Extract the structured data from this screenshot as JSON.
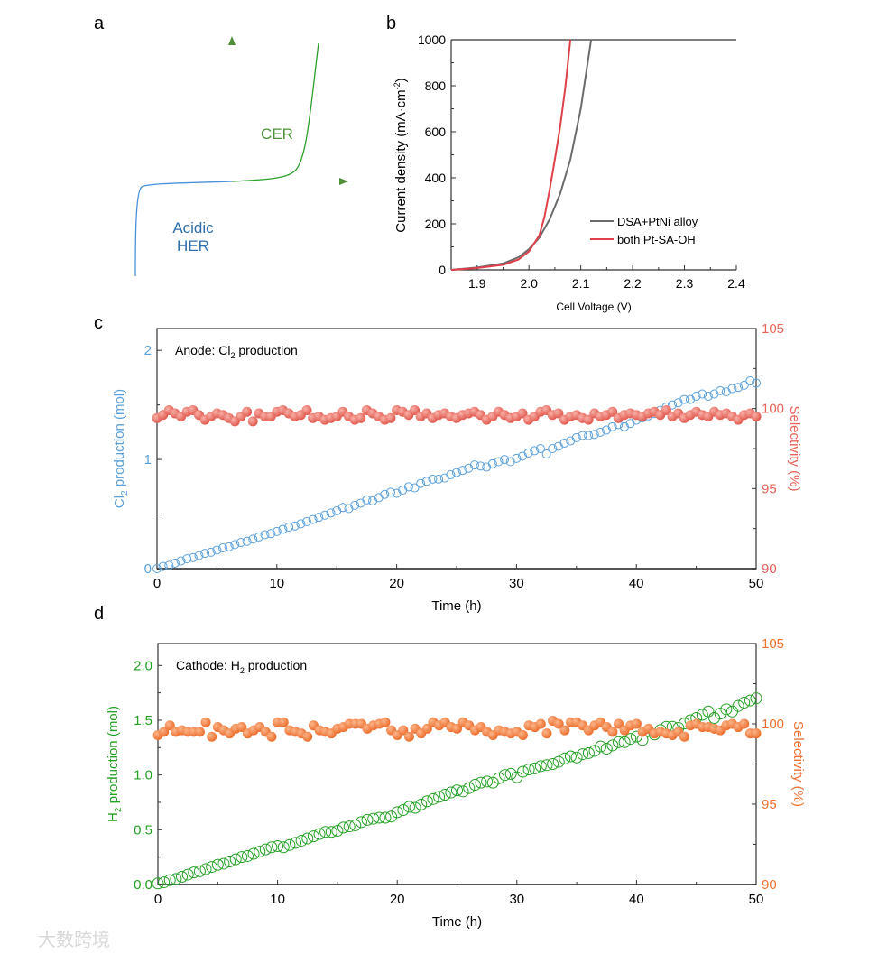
{
  "panel_labels": {
    "a": "a",
    "b": "b",
    "c": "c",
    "d": "d"
  },
  "watermark": "大数跨境",
  "colors": {
    "cer": "#3f8f2f",
    "her": "#2f6fb0",
    "dsa": "#6b6b6b",
    "pt_sa": "#e0404a",
    "cl2": "#5aa0dc",
    "sel_c": "#e8645a",
    "h2": "#22a022",
    "sel_d": "#f07030"
  },
  "chart_data": [
    {
      "type": "diagram",
      "panel": "a",
      "labels": {
        "cer": "CER",
        "her_line1": "Acidic",
        "her_line2": "HER"
      }
    },
    {
      "type": "line",
      "panel": "b",
      "xlabel": "Cell Voltage (V)",
      "ylabel_main": "Current density (mA·cm",
      "ylabel_sup": "-2",
      "ylabel_end": ")",
      "xlim": [
        1.85,
        2.4
      ],
      "ylim": [
        0,
        1000
      ],
      "xticks": [
        "1.9",
        "2.0",
        "2.1",
        "2.2",
        "2.3",
        "2.4"
      ],
      "yticks": [
        "0",
        "200",
        "400",
        "600",
        "800",
        "1000"
      ],
      "legend_position": "lower-right",
      "series": [
        {
          "name": "DSA+PtNi alloy",
          "color_key": "dsa",
          "points": [
            [
              1.85,
              0
            ],
            [
              1.9,
              10
            ],
            [
              1.95,
              28
            ],
            [
              1.98,
              55
            ],
            [
              2.0,
              90
            ],
            [
              2.02,
              140
            ],
            [
              2.04,
              220
            ],
            [
              2.06,
              330
            ],
            [
              2.08,
              480
            ],
            [
              2.1,
              700
            ],
            [
              2.12,
              1000
            ]
          ]
        },
        {
          "name": "both Pt-SA-OH",
          "color_key": "pt_sa",
          "points": [
            [
              1.85,
              0
            ],
            [
              1.9,
              8
            ],
            [
              1.95,
              22
            ],
            [
              1.98,
              45
            ],
            [
              2.0,
              80
            ],
            [
              2.02,
              150
            ],
            [
              2.03,
              230
            ],
            [
              2.04,
              350
            ],
            [
              2.05,
              480
            ],
            [
              2.06,
              620
            ],
            [
              2.07,
              790
            ],
            [
              2.08,
              1000
            ]
          ]
        }
      ]
    },
    {
      "type": "scatter",
      "panel": "c",
      "annotation": {
        "pre": "Anode: Cl",
        "sub": "2",
        "post": " production"
      },
      "xlabel": "Time (h)",
      "ylabel_left": {
        "pre": "Cl",
        "sub": "2",
        "post": " production (mol)"
      },
      "ylabel_right": "Selectivity (%)",
      "xlim": [
        0,
        50
      ],
      "ylim_left": [
        0,
        2.2
      ],
      "ylim_right": [
        90,
        105
      ],
      "xticks": [
        "0",
        "10",
        "20",
        "30",
        "40",
        "50"
      ],
      "yticks_left": [
        "0",
        "1",
        "2"
      ],
      "yticks_right": [
        "90",
        "95",
        "100",
        "105"
      ],
      "x_start": 0,
      "x_step": 0.5,
      "series": [
        {
          "name": "Cl2 production",
          "axis": "left",
          "marker": "open-circle",
          "color_key": "cl2",
          "values": [
            0,
            0.02,
            0.03,
            0.05,
            0.07,
            0.09,
            0.1,
            0.12,
            0.14,
            0.15,
            0.17,
            0.19,
            0.2,
            0.22,
            0.24,
            0.25,
            0.27,
            0.29,
            0.31,
            0.32,
            0.34,
            0.36,
            0.38,
            0.39,
            0.41,
            0.43,
            0.45,
            0.47,
            0.49,
            0.51,
            0.53,
            0.56,
            0.55,
            0.58,
            0.6,
            0.63,
            0.62,
            0.65,
            0.68,
            0.7,
            0.69,
            0.72,
            0.75,
            0.74,
            0.78,
            0.8,
            0.82,
            0.82,
            0.83,
            0.86,
            0.88,
            0.9,
            0.92,
            0.95,
            0.94,
            0.93,
            0.96,
            0.98,
            1.0,
            0.98,
            1.01,
            1.03,
            1.06,
            1.08,
            1.1,
            1.05,
            1.1,
            1.12,
            1.15,
            1.17,
            1.2,
            1.22,
            1.22,
            1.23,
            1.25,
            1.27,
            1.3,
            1.32,
            1.3,
            1.33,
            1.36,
            1.38,
            1.4,
            1.42,
            1.45,
            1.48,
            1.5,
            1.52,
            1.55,
            1.55,
            1.58,
            1.6,
            1.58,
            1.6,
            1.63,
            1.62,
            1.65,
            1.66,
            1.68,
            1.72,
            1.7
          ]
        },
        {
          "name": "Selectivity",
          "axis": "right",
          "marker": "filled-circle",
          "color_key": "sel_c",
          "values": [
            99.4,
            99.6,
            99.9,
            99.7,
            99.5,
            99.8,
            99.9,
            99.6,
            99.3,
            99.5,
            99.7,
            99.6,
            99.4,
            99.2,
            99.5,
            99.8,
            99.2,
            99.7,
            99.5,
            99.5,
            99.8,
            99.9,
            99.7,
            99.5,
            99.6,
            99.9,
            99.4,
            99.5,
            99.3,
            99.4,
            99.5,
            99.8,
            99.5,
            99.3,
            99.4,
            99.9,
            99.7,
            99.5,
            99.3,
            99.4,
            99.9,
            99.8,
            99.6,
            99.9,
            99.5,
            99.7,
            99.4,
            99.6,
            99.7,
            99.5,
            99.4,
            99.6,
            99.7,
            99.8,
            99.6,
            99.3,
            99.5,
            99.8,
            99.6,
            99.4,
            99.5,
            99.7,
            99.3,
            99.5,
            99.8,
            99.9,
            99.6,
            99.7,
            99.3,
            99.5,
            99.6,
            99.4,
            99.3,
            99.7,
            99.5,
            99.6,
            99.8,
            99.4,
            99.6,
            99.7,
            99.6,
            99.5,
            99.7,
            99.8,
            99.6,
            99.9,
            99.5,
            99.7,
            99.4,
            99.6,
            99.8,
            99.6,
            99.5,
            99.8,
            99.6,
            99.7,
            99.5,
            99.3,
            99.6,
            99.7,
            99.5
          ]
        }
      ]
    },
    {
      "type": "scatter",
      "panel": "d",
      "annotation": {
        "pre": "Cathode: H",
        "sub": "2",
        "post": " production"
      },
      "xlabel": "Time (h)",
      "ylabel_left": {
        "pre": "H",
        "sub": "2",
        "post": " production (mol)"
      },
      "ylabel_right": "Selectivity (%)",
      "xlim": [
        0,
        50
      ],
      "ylim_left": [
        0,
        2.2
      ],
      "ylim_right": [
        90,
        105
      ],
      "xticks": [
        "0",
        "10",
        "20",
        "30",
        "40",
        "50"
      ],
      "yticks_left": [
        "0.0",
        "0.5",
        "1.0",
        "1.5",
        "2.0"
      ],
      "yticks_right": [
        "90",
        "95",
        "100",
        "105"
      ],
      "x_start": 0,
      "x_step": 0.5,
      "series": [
        {
          "name": "H2 production",
          "axis": "left",
          "marker": "open-circle",
          "color_key": "h2",
          "values": [
            0.01,
            0.02,
            0.04,
            0.05,
            0.07,
            0.09,
            0.11,
            0.12,
            0.14,
            0.16,
            0.18,
            0.19,
            0.21,
            0.23,
            0.25,
            0.26,
            0.28,
            0.3,
            0.32,
            0.34,
            0.35,
            0.34,
            0.36,
            0.38,
            0.4,
            0.42,
            0.44,
            0.46,
            0.48,
            0.48,
            0.49,
            0.52,
            0.53,
            0.54,
            0.57,
            0.59,
            0.6,
            0.61,
            0.61,
            0.62,
            0.66,
            0.68,
            0.71,
            0.7,
            0.73,
            0.76,
            0.78,
            0.8,
            0.82,
            0.84,
            0.86,
            0.85,
            0.88,
            0.91,
            0.93,
            0.94,
            0.93,
            0.97,
            1.0,
            1.01,
            0.98,
            1.03,
            1.05,
            1.06,
            1.08,
            1.09,
            1.1,
            1.12,
            1.15,
            1.17,
            1.16,
            1.19,
            1.2,
            1.22,
            1.26,
            1.24,
            1.27,
            1.3,
            1.3,
            1.33,
            1.35,
            1.32,
            1.4,
            1.37,
            1.41,
            1.44,
            1.44,
            1.43,
            1.47,
            1.5,
            1.52,
            1.55,
            1.58,
            1.52,
            1.56,
            1.6,
            1.58,
            1.63,
            1.66,
            1.68,
            1.7
          ]
        },
        {
          "name": "Selectivity",
          "axis": "right",
          "marker": "filled-circle",
          "color_key": "sel_d",
          "values": [
            99.3,
            99.5,
            99.9,
            99.5,
            99.6,
            99.5,
            99.5,
            99.5,
            100.1,
            99.2,
            99.8,
            99.6,
            99.4,
            99.7,
            99.8,
            99.4,
            99.6,
            99.8,
            99.5,
            99.2,
            100.1,
            100.1,
            99.6,
            99.5,
            99.4,
            99.2,
            99.9,
            99.6,
            99.5,
            99.4,
            99.7,
            99.8,
            100,
            100,
            100,
            99.7,
            99.9,
            100,
            100.1,
            99.6,
            99.3,
            99.6,
            99.2,
            99.7,
            99.4,
            99.7,
            100.1,
            99.9,
            100.1,
            99.8,
            99.7,
            100.1,
            99.9,
            99.6,
            99.8,
            99.5,
            99.3,
            99.6,
            99.5,
            99.4,
            99.5,
            99.3,
            99.9,
            99.8,
            100,
            99.4,
            100.2,
            100,
            99.6,
            100.1,
            100.1,
            99.9,
            99.6,
            99.9,
            100.1,
            99.8,
            99.5,
            100,
            99.6,
            99.9,
            100,
            99.5,
            99.7,
            99.4,
            99.5,
            99.4,
            99.3,
            99.5,
            99.2,
            99.9,
            100,
            99.8,
            99.8,
            99.7,
            99.6,
            99.9,
            100,
            99.8,
            100,
            99.4,
            99.4
          ]
        }
      ]
    }
  ]
}
